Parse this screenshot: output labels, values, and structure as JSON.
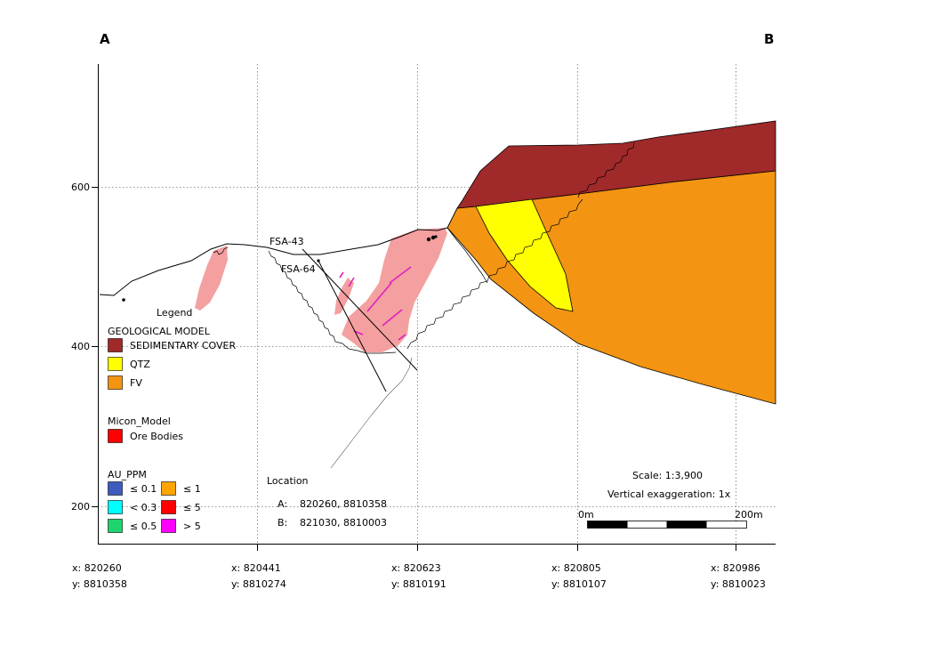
{
  "section": {
    "label_a": "A",
    "label_b": "B"
  },
  "y_axis": {
    "ticks": [
      "600",
      "400",
      "200"
    ]
  },
  "x_axis": {
    "ticks": [
      {
        "x": "x: 820260",
        "y": "y: 8810358"
      },
      {
        "x": "x: 820441",
        "y": "y: 8810274"
      },
      {
        "x": "x: 820623",
        "y": "y: 8810191"
      },
      {
        "x": "x: 820805",
        "y": "y: 8810107"
      },
      {
        "x": "x: 820986",
        "y": "y: 8810023"
      }
    ]
  },
  "drillholes": [
    "FSA-43",
    "FSA-64"
  ],
  "legend": {
    "title": "Legend",
    "geo_title": "GEOLOGICAL MODEL",
    "geo_items": [
      {
        "label": "SEDIMENTARY COVER",
        "color": "#a0292a"
      },
      {
        "label": "QTZ",
        "color": "#ffff00"
      },
      {
        "label": "FV",
        "color": "#f39412"
      }
    ],
    "micon_title": "Micon_Model",
    "micon_items": [
      {
        "label": "Ore Bodies",
        "color": "#ff0000"
      }
    ],
    "au_title": "AU_PPM",
    "au_items": [
      {
        "label": "≤ 0.1",
        "color": "#3c5bbd"
      },
      {
        "label": "< 0.3",
        "color": "#00ffff"
      },
      {
        "label": "≤ 0.5",
        "color": "#1fd46d"
      },
      {
        "label": "≤ 1",
        "color": "#ffa500"
      },
      {
        "label": "≤ 5",
        "color": "#ff0000"
      },
      {
        "label": "> 5",
        "color": "#ff00ff"
      }
    ]
  },
  "location": {
    "title": "Location",
    "a_label": "A:",
    "a_value": "820260, 8810358",
    "b_label": "B:",
    "b_value": "821030, 8810003"
  },
  "scale": {
    "text": "Scale: 1:3,900",
    "exaggeration": "Vertical exaggeration: 1x",
    "bar_start": "0m",
    "bar_end": "200m"
  },
  "colors": {
    "ore_body": "#f4a0a0",
    "sedimentary": "#a0292a",
    "qtz": "#ffff00",
    "fv": "#f39412",
    "assay": "#e020c0"
  }
}
